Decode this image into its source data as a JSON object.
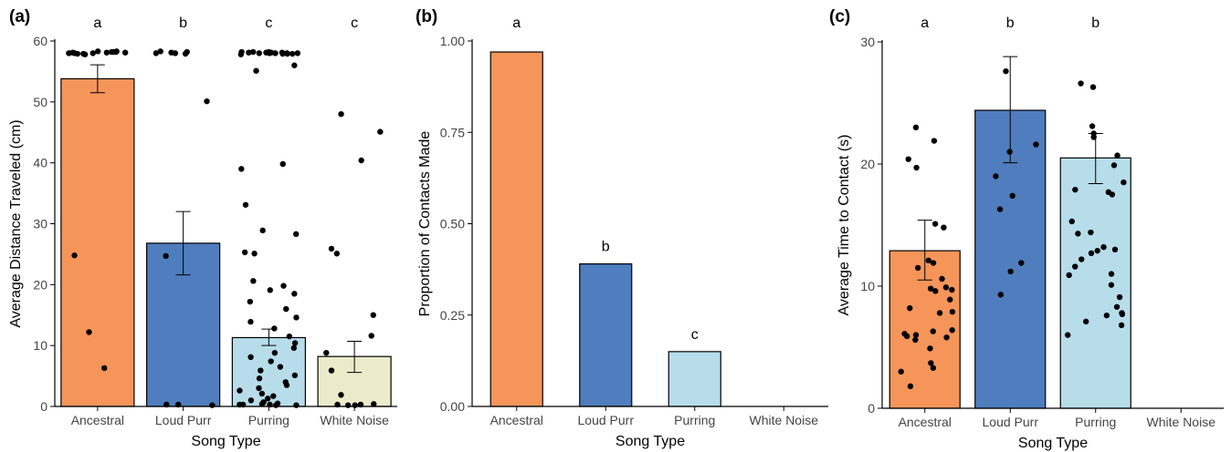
{
  "chart_data": [
    {
      "type": "bar",
      "panel_label": "(a)",
      "xlabel": "Song Type",
      "ylabel": "Average Distance Traveled (cm)",
      "ylim": [
        0,
        60
      ],
      "yticks": [
        "0",
        "10",
        "20",
        "30",
        "40",
        "50",
        "60"
      ],
      "categories": [
        "Ancestral",
        "Loud Purr",
        "Purring",
        "White Noise"
      ],
      "values": [
        53.8,
        26.8,
        11.3,
        8.2
      ],
      "error_low": [
        51.5,
        21.6,
        10.0,
        5.6
      ],
      "error_high": [
        56.1,
        32.0,
        12.7,
        10.7
      ],
      "colors": [
        "#F5955A",
        "#4F7DBD",
        "#B7DDEA",
        "#EBEBCB"
      ],
      "letters": [
        "a",
        "b",
        "c",
        "c"
      ],
      "points": [
        [
          58.2,
          58.1,
          58.0,
          58.3,
          57.9,
          58.2,
          58.0,
          58.1,
          57.8,
          58.2,
          58.0,
          57.9,
          58.1,
          58.3,
          24.8,
          12.2,
          6.3
        ],
        [
          58.2,
          58.0,
          58.1,
          57.9,
          58.3,
          58.0,
          50.1,
          24.7,
          0.3,
          0.2,
          0.3
        ],
        [
          58.1,
          58.0,
          57.9,
          58.2,
          58.0,
          57.8,
          58.1,
          58.2,
          58.0,
          57.9,
          58.1,
          58.0,
          58.2,
          57.9,
          58.1,
          58.0,
          56.0,
          55.1,
          39.8,
          39.0,
          33.1,
          28.9,
          28.3,
          25.3,
          25.1,
          20.6,
          19.8,
          19.1,
          18.5,
          17.2,
          16.0,
          14.6,
          13.9,
          12.8,
          11.5,
          10.4,
          9.6,
          8.8,
          8.1,
          7.4,
          6.5,
          5.9,
          5.1,
          4.6,
          4.0,
          3.5,
          3.0,
          2.6,
          2.1,
          1.7,
          1.3,
          1.0,
          0.7,
          0.5,
          0.3,
          0.2,
          0.4,
          0.3,
          0.2,
          0.3
        ],
        [
          48.0,
          45.1,
          40.4,
          25.9,
          25.1,
          15.0,
          11.6,
          8.8,
          5.9,
          1.9,
          0.4,
          0.3,
          0.2,
          0.3,
          0.2
        ]
      ]
    },
    {
      "type": "bar",
      "panel_label": "(b)",
      "xlabel": "Song Type",
      "ylabel": "Proportion of Contacts Made",
      "ylim": [
        0,
        1
      ],
      "yticks": [
        "0.00",
        "0.25",
        "0.50",
        "0.75",
        "1.00"
      ],
      "categories": [
        "Ancestral",
        "Loud Purr",
        "Purring",
        "White Noise"
      ],
      "values": [
        0.97,
        0.39,
        0.15,
        0
      ],
      "colors": [
        "#F5955A",
        "#4F7DBD",
        "#B7DDEA",
        "#EBEBCB"
      ],
      "letters": [
        "a",
        "b",
        "c",
        ""
      ]
    },
    {
      "type": "bar",
      "panel_label": "(c)",
      "xlabel": "Song Type",
      "ylabel": "Average Time to Contact (s)",
      "ylim": [
        0,
        30
      ],
      "yticks": [
        "0",
        "10",
        "20",
        "30"
      ],
      "categories": [
        "Ancestral",
        "Loud Purr",
        "Purring",
        "White Noise"
      ],
      "values": [
        12.9,
        24.4,
        20.5,
        0
      ],
      "error_low": [
        10.5,
        20.1,
        18.4,
        0
      ],
      "error_high": [
        15.4,
        28.8,
        22.5,
        0
      ],
      "colors": [
        "#F5955A",
        "#4F7DBD",
        "#B7DDEA",
        "#EBEBCB"
      ],
      "letters": [
        "a",
        "b",
        "b"
      ],
      "points": [
        [
          23.0,
          21.9,
          20.4,
          19.7,
          15.1,
          14.8,
          12.1,
          11.9,
          11.5,
          10.6,
          9.9,
          9.8,
          9.7,
          9.6,
          8.9,
          8.2,
          7.9,
          7.8,
          6.4,
          6.3,
          6.1,
          6.0,
          5.9,
          5.8,
          5.6,
          4.9,
          3.7,
          3.3,
          3.0,
          1.8
        ],
        [
          27.6,
          21.6,
          21.0,
          19.0,
          17.4,
          16.3,
          11.9,
          11.2,
          9.3
        ],
        [
          26.6,
          26.3,
          23.1,
          22.5,
          22.2,
          20.7,
          19.9,
          18.5,
          17.9,
          17.7,
          17.5,
          15.3,
          14.4,
          14.3,
          13.2,
          13.0,
          12.9,
          12.7,
          12.2,
          11.6,
          11.0,
          10.9,
          10.1,
          9.1,
          8.3,
          7.8,
          7.7,
          7.6,
          7.1,
          6.8,
          6.0
        ]
      ]
    }
  ]
}
